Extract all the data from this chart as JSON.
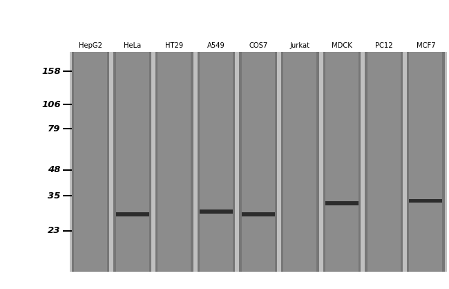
{
  "lane_labels": [
    "HepG2",
    "HeLa",
    "HT29",
    "A549",
    "COS7",
    "Jurkat",
    "MDCK",
    "PC12",
    "MCF7"
  ],
  "mw_markers": [
    158,
    106,
    79,
    48,
    35,
    23
  ],
  "lane_color": "#8c8c8c",
  "lane_edge_color": "#6e6e6e",
  "band_color": "#222222",
  "fig_bg": "#ffffff",
  "gap_color": "#c0c0c0",
  "band_positions": {
    "HepG2": null,
    "HeLa": 28,
    "HT29": null,
    "A549": 29,
    "COS7": 28,
    "Jurkat": null,
    "MDCK": 32,
    "PC12": null,
    "MCF7": 33
  }
}
